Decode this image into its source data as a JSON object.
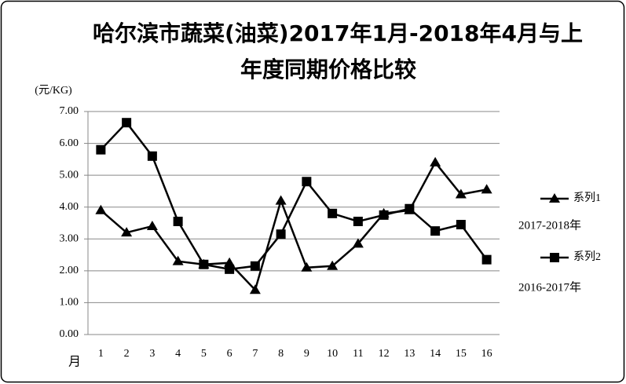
{
  "chart_data": {
    "type": "line",
    "title": [
      "哈尔滨市蔬菜(油菜)2017年1月-2018年4月与上",
      "年度同期价格比较"
    ],
    "y_label": "(元/KG)",
    "x_label": "月",
    "categories": [
      "1",
      "2",
      "3",
      "4",
      "5",
      "6",
      "7",
      "8",
      "9",
      "10",
      "11",
      "12",
      "13",
      "14",
      "15",
      "16"
    ],
    "series": [
      {
        "name": "系列1",
        "color": "#000000",
        "marker": "triangle",
        "values": [
          3.9,
          3.2,
          3.4,
          2.3,
          2.2,
          2.25,
          1.4,
          4.2,
          2.1,
          2.15,
          2.85,
          3.8,
          3.9,
          5.4,
          4.4,
          4.55
        ]
      },
      {
        "name": "系列2",
        "color": "#000000",
        "marker": "square",
        "values": [
          5.8,
          6.65,
          5.6,
          3.55,
          2.2,
          2.05,
          2.15,
          3.15,
          4.8,
          3.8,
          3.55,
          3.75,
          3.95,
          3.25,
          3.45,
          2.35
        ]
      }
    ],
    "annotations": [
      "2017-2018年",
      "2016-2017年"
    ],
    "ylim": [
      0,
      7
    ],
    "yticks": [
      {
        "value": 0,
        "label": "0.00"
      },
      {
        "value": 1,
        "label": "1.00"
      },
      {
        "value": 2,
        "label": "2.00"
      },
      {
        "value": 3,
        "label": "3.00"
      },
      {
        "value": 4,
        "label": "4.00"
      },
      {
        "value": 5,
        "label": "5.00"
      },
      {
        "value": 6,
        "label": "6.00"
      },
      {
        "value": 7,
        "label": "7.00"
      }
    ],
    "grid": true,
    "legend": "right"
  }
}
